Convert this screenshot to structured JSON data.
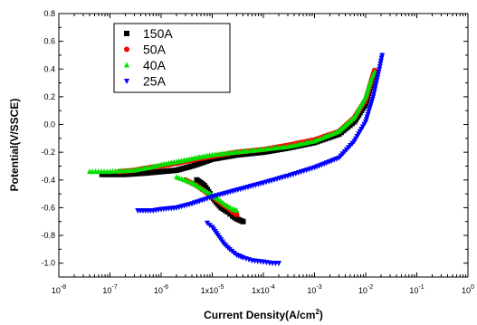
{
  "chart_data": {
    "type": "scatter",
    "xlabel": "Current Density(A/cm",
    "xlabel_sup": "2",
    "xlabel_close": ")",
    "ylabel": "Potential(V/SSCE)",
    "x_scale": "log",
    "xlim": [
      1e-08,
      1
    ],
    "ylim": [
      -1.1,
      0.8
    ],
    "x_ticks": [
      1e-08,
      1e-07,
      1e-06,
      1e-05,
      0.0001,
      0.001,
      0.01,
      0.1,
      1
    ],
    "x_tick_labels": [
      {
        "base": "10",
        "exp": "-8"
      },
      {
        "base": "10",
        "exp": "-7"
      },
      {
        "base": "10",
        "exp": "-6"
      },
      {
        "base": "1x10",
        "exp": "-5"
      },
      {
        "base": "1x10",
        "exp": "-4"
      },
      {
        "base": "10",
        "exp": "-3"
      },
      {
        "base": "10",
        "exp": "-2"
      },
      {
        "base": "10",
        "exp": "-1"
      },
      {
        "base": "10",
        "exp": "0"
      }
    ],
    "y_ticks": [
      -1.0,
      -0.8,
      -0.6,
      -0.4,
      -0.2,
      0.0,
      0.2,
      0.4,
      0.6,
      0.8
    ],
    "y_tick_labels": [
      "-1.0",
      "-0.8",
      "-0.6",
      "-0.4",
      "-0.2",
      "0.0",
      "0.2",
      "0.4",
      "0.6",
      "0.8"
    ],
    "grid": false,
    "legend_position": "top-left",
    "series": [
      {
        "name": "150A",
        "color": "#000000",
        "marker": "square",
        "cathodic": [
          [
            5e-06,
            -0.4
          ],
          [
            6e-06,
            -0.42
          ],
          [
            7e-06,
            -0.44
          ],
          [
            8e-06,
            -0.47
          ],
          [
            9e-06,
            -0.5
          ],
          [
            1e-05,
            -0.52
          ],
          [
            1.2e-05,
            -0.56
          ],
          [
            1.5e-05,
            -0.6
          ],
          [
            2e-05,
            -0.63
          ],
          [
            2.5e-05,
            -0.66
          ],
          [
            3e-05,
            -0.68
          ],
          [
            4e-05,
            -0.7
          ]
        ],
        "anodic": [
          [
            7e-08,
            -0.36
          ],
          [
            2e-07,
            -0.36
          ],
          [
            5e-07,
            -0.35
          ],
          [
            1e-06,
            -0.34
          ],
          [
            2e-06,
            -0.33
          ],
          [
            4e-06,
            -0.3
          ],
          [
            7e-06,
            -0.27
          ],
          [
            1e-05,
            -0.25
          ],
          [
            3e-05,
            -0.22
          ],
          [
            0.0001,
            -0.2
          ],
          [
            0.0003,
            -0.17
          ],
          [
            0.001,
            -0.13
          ],
          [
            0.003,
            -0.07
          ],
          [
            0.006,
            0.02
          ],
          [
            0.01,
            0.15
          ],
          [
            0.013,
            0.3
          ],
          [
            0.015,
            0.38
          ]
        ]
      },
      {
        "name": "50A",
        "color": "#ff0000",
        "marker": "circle",
        "cathodic": [
          [
            3e-06,
            -0.4
          ],
          [
            5e-06,
            -0.44
          ],
          [
            7e-06,
            -0.48
          ],
          [
            1e-05,
            -0.52
          ],
          [
            1.5e-05,
            -0.57
          ],
          [
            2e-05,
            -0.6
          ],
          [
            2.5e-05,
            -0.63
          ],
          [
            3e-05,
            -0.65
          ]
        ],
        "anodic": [
          [
            1.5e-07,
            -0.34
          ],
          [
            3e-07,
            -0.33
          ],
          [
            6e-07,
            -0.31
          ],
          [
            1e-06,
            -0.3
          ],
          [
            2e-06,
            -0.28
          ],
          [
            5e-06,
            -0.25
          ],
          [
            1e-05,
            -0.23
          ],
          [
            3e-05,
            -0.2
          ],
          [
            0.0001,
            -0.18
          ],
          [
            0.0003,
            -0.15
          ],
          [
            0.001,
            -0.11
          ],
          [
            0.003,
            -0.05
          ],
          [
            0.006,
            0.05
          ],
          [
            0.01,
            0.18
          ],
          [
            0.013,
            0.32
          ],
          [
            0.015,
            0.39
          ]
        ]
      },
      {
        "name": "40A",
        "color": "#00e000",
        "marker": "triangle-up",
        "cathodic": [
          [
            2e-06,
            -0.38
          ],
          [
            4e-06,
            -0.42
          ],
          [
            6e-06,
            -0.46
          ],
          [
            9e-06,
            -0.5
          ],
          [
            1.3e-05,
            -0.54
          ],
          [
            1.8e-05,
            -0.58
          ],
          [
            2.5e-05,
            -0.61
          ],
          [
            3e-05,
            -0.62
          ]
        ],
        "anodic": [
          [
            4e-08,
            -0.34
          ],
          [
            1e-07,
            -0.34
          ],
          [
            3e-07,
            -0.33
          ],
          [
            6e-07,
            -0.31
          ],
          [
            1e-06,
            -0.29
          ],
          [
            2e-06,
            -0.27
          ],
          [
            5e-06,
            -0.24
          ],
          [
            1e-05,
            -0.22
          ],
          [
            3e-05,
            -0.2
          ],
          [
            0.0001,
            -0.18
          ],
          [
            0.0003,
            -0.16
          ],
          [
            0.001,
            -0.12
          ],
          [
            0.003,
            -0.05
          ],
          [
            0.006,
            0.05
          ],
          [
            0.01,
            0.2
          ],
          [
            0.013,
            0.33
          ],
          [
            0.015,
            0.38
          ]
        ]
      },
      {
        "name": "25A",
        "color": "#0000ff",
        "marker": "triangle-down",
        "cathodic": [
          [
            8e-06,
            -0.71
          ],
          [
            1e-05,
            -0.74
          ],
          [
            1.3e-05,
            -0.8
          ],
          [
            1.7e-05,
            -0.86
          ],
          [
            2.2e-05,
            -0.9
          ],
          [
            3e-05,
            -0.94
          ],
          [
            4e-05,
            -0.96
          ],
          [
            6e-05,
            -0.98
          ],
          [
            0.0001,
            -0.99
          ],
          [
            0.00015,
            -1.0
          ],
          [
            0.0002,
            -1.0
          ]
        ],
        "anodic": [
          [
            3.5e-07,
            -0.62
          ],
          [
            7e-07,
            -0.62
          ],
          [
            1e-06,
            -0.61
          ],
          [
            2e-06,
            -0.6
          ],
          [
            4e-06,
            -0.57
          ],
          [
            7e-06,
            -0.54
          ],
          [
            1e-05,
            -0.52
          ],
          [
            2e-05,
            -0.49
          ],
          [
            5e-05,
            -0.45
          ],
          [
            0.0001,
            -0.42
          ],
          [
            0.0003,
            -0.37
          ],
          [
            0.001,
            -0.31
          ],
          [
            0.003,
            -0.24
          ],
          [
            0.006,
            -0.12
          ],
          [
            0.01,
            0.02
          ],
          [
            0.014,
            0.2
          ],
          [
            0.018,
            0.38
          ],
          [
            0.021,
            0.5
          ]
        ]
      }
    ]
  }
}
